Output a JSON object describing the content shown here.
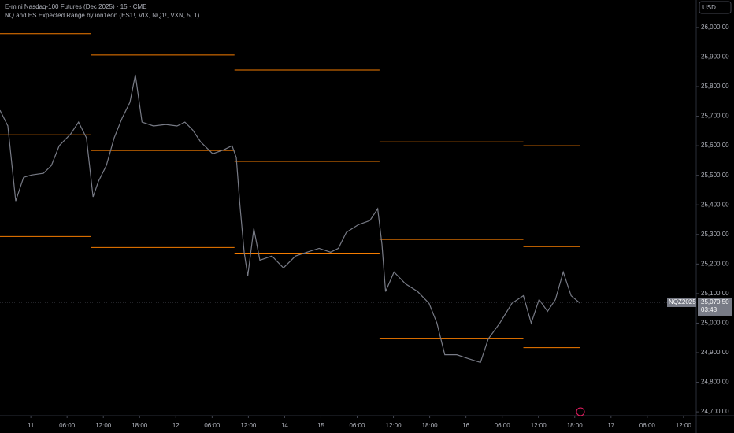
{
  "chart_data": {
    "type": "line",
    "title": "E-mini Nasdaq-100 Futures (Dec 2025) · 15 · CME",
    "subtitle": "NQ and ES Expected Range by ion1eon (ES1!, VIX, NQ1!, VXN, 5, 1)",
    "currency": "USD",
    "color": "#787b86",
    "x": [
      -5.1,
      -3.8,
      -2.5,
      -1.2,
      0.1,
      2.1,
      3.4,
      4.7,
      6.6,
      7.9,
      9.2,
      10.3,
      11.2,
      12.5,
      13.8,
      15.1,
      16.4,
      17.3,
      18.4,
      20.3,
      22.3,
      24.2,
      25.5,
      26.8,
      28.1,
      30.1,
      32.0,
      33.3,
      34.0,
      34.6,
      35.3,
      35.9,
      36.9,
      37.9,
      39.9,
      41.8,
      43.8,
      45.7,
      47.7,
      49.6,
      50.9,
      52.2,
      54.2,
      56.1,
      57.4,
      58.1,
      58.7,
      60.1,
      62.0,
      64.0,
      65.9,
      67.2,
      68.5,
      70.5,
      72.4,
      74.4,
      75.7,
      77.6,
      79.6,
      81.5,
      82.8,
      84.1,
      85.5,
      86.8,
      88.1,
      89.4,
      90.9
    ],
    "values": [
      25720,
      25667,
      25413,
      25493,
      25501,
      25507,
      25533,
      25600,
      25640,
      25680,
      25627,
      25427,
      25480,
      25533,
      25627,
      25693,
      25747,
      25840,
      25680,
      25667,
      25672,
      25667,
      25680,
      25653,
      25613,
      25573,
      25587,
      25600,
      25560,
      25400,
      25240,
      25160,
      25320,
      25213,
      25227,
      25187,
      25227,
      25240,
      25253,
      25240,
      25253,
      25307,
      25333,
      25347,
      25387,
      25267,
      25107,
      25173,
      25133,
      25107,
      25067,
      25000,
      24893,
      24893,
      24880,
      24867,
      24947,
      25000,
      25067,
      25093,
      25000,
      25080,
      25040,
      25080,
      25173,
      25093,
      25067
    ],
    "ranges": {
      "color": "#f57c00",
      "segments": [
        {
          "x": [
            -5.1,
            9.9
          ],
          "value": 25979
        },
        {
          "x": [
            -5.1,
            9.9
          ],
          "value": 25637
        },
        {
          "x": [
            -5.1,
            9.9
          ],
          "value": 25293
        },
        {
          "x": [
            9.9,
            33.7
          ],
          "value": 25907
        },
        {
          "x": [
            9.9,
            33.7
          ],
          "value": 25584
        },
        {
          "x": [
            9.9,
            33.7
          ],
          "value": 25256
        },
        {
          "x": [
            33.7,
            57.7
          ],
          "value": 25856
        },
        {
          "x": [
            33.7,
            57.7
          ],
          "value": 25547
        },
        {
          "x": [
            33.7,
            57.7
          ],
          "value": 25237
        },
        {
          "x": [
            57.7,
            81.5
          ],
          "value": 25613
        },
        {
          "x": [
            57.7,
            81.5
          ],
          "value": 25283
        },
        {
          "x": [
            57.7,
            81.5
          ],
          "value": 24949
        },
        {
          "x": [
            81.5,
            90.9
          ],
          "value": 25600
        },
        {
          "x": [
            81.5,
            90.9
          ],
          "value": 25259
        },
        {
          "x": [
            81.5,
            90.9
          ],
          "value": 24917
        }
      ]
    },
    "last_price": {
      "symbol": "NQZ2025",
      "value": 25070.5,
      "label": "25,070.50",
      "countdown": "03:48"
    },
    "xlim": [
      -5.1,
      110.1
    ],
    "xticks": [
      {
        "value": 0,
        "label": "11"
      },
      {
        "value": 6,
        "label": "06:00"
      },
      {
        "value": 12,
        "label": "12:00"
      },
      {
        "value": 18,
        "label": "18:00"
      },
      {
        "value": 24,
        "label": "12"
      },
      {
        "value": 30,
        "label": "06:00"
      },
      {
        "value": 36,
        "label": "12:00"
      },
      {
        "value": 42,
        "label": "14"
      },
      {
        "value": 48,
        "label": "15"
      },
      {
        "value": 54,
        "label": "06:00"
      },
      {
        "value": 60,
        "label": "12:00"
      },
      {
        "value": 66,
        "label": "18:00"
      },
      {
        "value": 72,
        "label": "16"
      },
      {
        "value": 78,
        "label": "06:00"
      },
      {
        "value": 84,
        "label": "12:00"
      },
      {
        "value": 90,
        "label": "18:00"
      },
      {
        "value": 96,
        "label": "17"
      },
      {
        "value": 102,
        "label": "06:00"
      },
      {
        "value": 108,
        "label": "12:00"
      }
    ],
    "ylim": [
      24687,
      26093
    ],
    "yticks": [
      {
        "value": 24700,
        "label": "24,700.00"
      },
      {
        "value": 24800,
        "label": "24,800.00"
      },
      {
        "value": 24900,
        "label": "24,900.00"
      },
      {
        "value": 25000,
        "label": "25,000.00"
      },
      {
        "value": 25100,
        "label": "25,100.00"
      },
      {
        "value": 25200,
        "label": "25,200.00"
      },
      {
        "value": 25300,
        "label": "25,300.00"
      },
      {
        "value": 25400,
        "label": "25,400.00"
      },
      {
        "value": 25500,
        "label": "25,500.00"
      },
      {
        "value": 25600,
        "label": "25,600.00"
      },
      {
        "value": 25700,
        "label": "25,700.00"
      },
      {
        "value": 25800,
        "label": "25,800.00"
      },
      {
        "value": 25900,
        "label": "25,900.00"
      },
      {
        "value": 26000,
        "label": "26,000.00"
      }
    ]
  }
}
